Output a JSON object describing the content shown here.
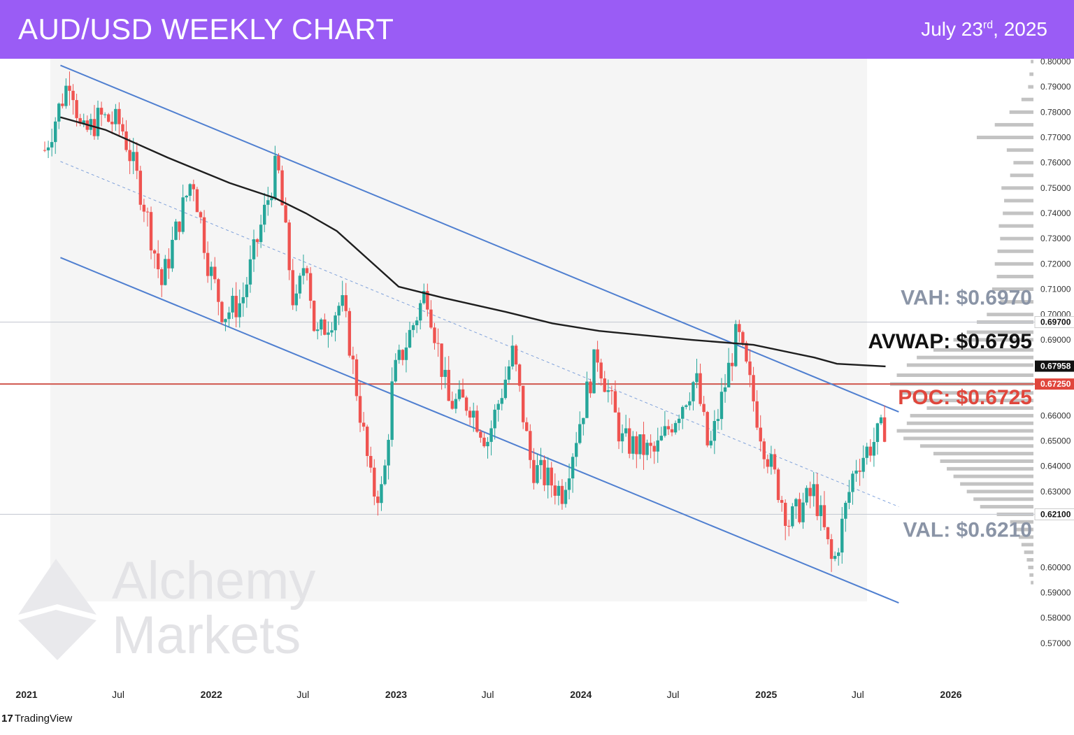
{
  "header": {
    "title": "AUD/USD WEEKLY CHART",
    "date_main": "July 23",
    "date_suffix": "rd",
    "date_year": ", 2025"
  },
  "watermark": {
    "line1": "Alchemy",
    "line2": "Markets"
  },
  "footer": {
    "brand": "TradingView",
    "logo_glyph": "17"
  },
  "chart_data": {
    "type": "candlestick",
    "title": "AUD/USD WEEKLY CHART",
    "timeframe": "weekly",
    "x_range": [
      "2021-01-01",
      "2026-03-01"
    ],
    "ylim": [
      0.565,
      0.8
    ],
    "y_ticks": [
      "0.80000",
      "0.79000",
      "0.78000",
      "0.77000",
      "0.76000",
      "0.75000",
      "0.74000",
      "0.73000",
      "0.72000",
      "0.71000",
      "0.70000",
      "0.69000",
      "0.66000",
      "0.65000",
      "0.64000",
      "0.63000",
      "0.60000",
      "0.59000",
      "0.58000",
      "0.57000"
    ],
    "x_ticks": [
      {
        "label": "2021",
        "date": "2021-01-01"
      },
      {
        "label": "Jul",
        "date": "2021-07-01"
      },
      {
        "label": "2022",
        "date": "2022-01-01"
      },
      {
        "label": "Jul",
        "date": "2022-07-01"
      },
      {
        "label": "2023",
        "date": "2023-01-01"
      },
      {
        "label": "Jul",
        "date": "2023-07-01"
      },
      {
        "label": "2024",
        "date": "2024-01-01"
      },
      {
        "label": "Jul",
        "date": "2024-07-01"
      },
      {
        "label": "2025",
        "date": "2025-01-01"
      },
      {
        "label": "Jul",
        "date": "2025-07-01"
      },
      {
        "label": "2026",
        "date": "2026-01-01"
      }
    ],
    "price_markers": [
      {
        "label": "0.69700",
        "value": 0.697,
        "style": "plain"
      },
      {
        "label": "0.67958",
        "value": 0.67958,
        "style": "dark"
      },
      {
        "label": "0.67250",
        "value": 0.6725,
        "style": "red"
      },
      {
        "label": "0.62100",
        "value": 0.621,
        "style": "plain"
      }
    ],
    "annotations": [
      {
        "text": "VAH: $0.6970",
        "value": 0.697,
        "color": "#8a94a6"
      },
      {
        "text": "AVWAP: $0.6795",
        "value": 0.6795,
        "color": "#111111"
      },
      {
        "text": "POC: $0.6725",
        "value": 0.6725,
        "color": "#e0463c"
      },
      {
        "text": "VAL: $0.6210",
        "value": 0.621,
        "color": "#8a94a6"
      }
    ],
    "horizontal_lines": [
      {
        "name": "VAH",
        "value": 0.697,
        "color": "#c8ccd4"
      },
      {
        "name": "POC",
        "value": 0.6725,
        "color": "#d0574e"
      },
      {
        "name": "VAL",
        "value": 0.621,
        "color": "#c8ccd4"
      }
    ],
    "channel": {
      "upper": [
        [
          "2021-02-01",
          0.7985
        ],
        [
          "2025-08-15",
          0.6615
        ]
      ],
      "lower": [
        [
          "2021-02-01",
          0.7225
        ],
        [
          "2025-08-15",
          0.586
        ]
      ],
      "mid": [
        [
          "2021-02-01",
          0.7605
        ],
        [
          "2025-08-15",
          0.624
        ]
      ]
    },
    "avwap": [
      [
        "2021-02-01",
        0.778
      ],
      [
        "2021-05-01",
        0.773
      ],
      [
        "2021-09-01",
        0.762
      ],
      [
        "2022-01-01",
        0.752
      ],
      [
        "2022-04-01",
        0.746
      ],
      [
        "2022-06-01",
        0.74
      ],
      [
        "2022-08-01",
        0.733
      ],
      [
        "2022-10-01",
        0.722
      ],
      [
        "2022-12-01",
        0.711
      ],
      [
        "2023-03-01",
        0.7065
      ],
      [
        "2023-07-01",
        0.701
      ],
      [
        "2023-10-01",
        0.6965
      ],
      [
        "2024-01-01",
        0.6935
      ],
      [
        "2024-07-01",
        0.69
      ],
      [
        "2024-11-01",
        0.688
      ],
      [
        "2025-03-01",
        0.683
      ],
      [
        "2025-04-15",
        0.6805
      ],
      [
        "2025-07-20",
        0.6795
      ]
    ],
    "price_path": [
      [
        "2021-01-01",
        0.765
      ],
      [
        "2021-02-21",
        0.795
      ],
      [
        "2021-03-15",
        0.77
      ],
      [
        "2021-04-20",
        0.778
      ],
      [
        "2021-06-01",
        0.775
      ],
      [
        "2021-07-15",
        0.745
      ],
      [
        "2021-08-20",
        0.712
      ],
      [
        "2021-09-20",
        0.735
      ],
      [
        "2021-10-20",
        0.755
      ],
      [
        "2021-11-20",
        0.72
      ],
      [
        "2021-12-20",
        0.7
      ],
      [
        "2022-01-25",
        0.705
      ],
      [
        "2022-04-05",
        0.76
      ],
      [
        "2022-05-10",
        0.7
      ],
      [
        "2022-06-01",
        0.725
      ],
      [
        "2022-06-20",
        0.69
      ],
      [
        "2022-08-10",
        0.705
      ],
      [
        "2022-08-25",
        0.69
      ],
      [
        "2022-10-10",
        0.63
      ],
      [
        "2022-10-31",
        0.63
      ],
      [
        "2022-11-20",
        0.675
      ],
      [
        "2023-01-25",
        0.71
      ],
      [
        "2023-03-10",
        0.665
      ],
      [
        "2023-04-20",
        0.665
      ],
      [
        "2023-05-25",
        0.65
      ],
      [
        "2023-07-15",
        0.685
      ],
      [
        "2023-08-20",
        0.64
      ],
      [
        "2023-10-20",
        0.63
      ],
      [
        "2023-12-28",
        0.685
      ],
      [
        "2024-02-15",
        0.65
      ],
      [
        "2024-04-20",
        0.645
      ],
      [
        "2024-07-10",
        0.675
      ],
      [
        "2024-08-05",
        0.645
      ],
      [
        "2024-09-30",
        0.693
      ],
      [
        "2024-11-20",
        0.65
      ],
      [
        "2025-01-10",
        0.618
      ],
      [
        "2025-03-01",
        0.63
      ],
      [
        "2025-04-07",
        0.6
      ],
      [
        "2025-05-20",
        0.64
      ],
      [
        "2025-07-20",
        0.656
      ]
    ],
    "volume_profile": {
      "poc": 0.6725,
      "vah": 0.697,
      "val": 0.621,
      "levels": [
        {
          "price": 0.8,
          "volume": 4
        },
        {
          "price": 0.795,
          "volume": 6
        },
        {
          "price": 0.79,
          "volume": 8
        },
        {
          "price": 0.785,
          "volume": 18
        },
        {
          "price": 0.78,
          "volume": 36
        },
        {
          "price": 0.775,
          "volume": 58
        },
        {
          "price": 0.77,
          "volume": 85
        },
        {
          "price": 0.765,
          "volume": 40
        },
        {
          "price": 0.76,
          "volume": 30
        },
        {
          "price": 0.755,
          "volume": 35
        },
        {
          "price": 0.75,
          "volume": 48
        },
        {
          "price": 0.745,
          "volume": 44
        },
        {
          "price": 0.74,
          "volume": 46
        },
        {
          "price": 0.735,
          "volume": 52
        },
        {
          "price": 0.73,
          "volume": 50
        },
        {
          "price": 0.725,
          "volume": 54
        },
        {
          "price": 0.72,
          "volume": 58
        },
        {
          "price": 0.715,
          "volume": 55
        },
        {
          "price": 0.71,
          "volume": 62
        },
        {
          "price": 0.705,
          "volume": 50
        },
        {
          "price": 0.7,
          "volume": 70
        },
        {
          "price": 0.697,
          "volume": 85
        },
        {
          "price": 0.693,
          "volume": 100
        },
        {
          "price": 0.69,
          "volume": 120
        },
        {
          "price": 0.686,
          "volume": 150
        },
        {
          "price": 0.683,
          "volume": 175
        },
        {
          "price": 0.68,
          "volume": 190
        },
        {
          "price": 0.676,
          "volume": 205
        },
        {
          "price": 0.6725,
          "volume": 215
        },
        {
          "price": 0.669,
          "volume": 200
        },
        {
          "price": 0.666,
          "volume": 180
        },
        {
          "price": 0.663,
          "volume": 160
        },
        {
          "price": 0.66,
          "volume": 185
        },
        {
          "price": 0.657,
          "volume": 190
        },
        {
          "price": 0.654,
          "volume": 205
        },
        {
          "price": 0.651,
          "volume": 195
        },
        {
          "price": 0.648,
          "volume": 170
        },
        {
          "price": 0.645,
          "volume": 150
        },
        {
          "price": 0.642,
          "volume": 140
        },
        {
          "price": 0.639,
          "volume": 130
        },
        {
          "price": 0.636,
          "volume": 120
        },
        {
          "price": 0.633,
          "volume": 110
        },
        {
          "price": 0.63,
          "volume": 100
        },
        {
          "price": 0.627,
          "volume": 90
        },
        {
          "price": 0.624,
          "volume": 80
        },
        {
          "price": 0.621,
          "volume": 55
        },
        {
          "price": 0.618,
          "volume": 35
        },
        {
          "price": 0.615,
          "volume": 28
        },
        {
          "price": 0.612,
          "volume": 22
        },
        {
          "price": 0.609,
          "volume": 18
        },
        {
          "price": 0.606,
          "volume": 14
        },
        {
          "price": 0.603,
          "volume": 10
        },
        {
          "price": 0.6,
          "volume": 8
        },
        {
          "price": 0.597,
          "volume": 6
        },
        {
          "price": 0.594,
          "volume": 4
        }
      ]
    },
    "colors": {
      "up": "#26a69a",
      "down": "#ef5350",
      "channel": "#4f7fd0",
      "avwap": "#1e1e1e",
      "poc_line": "#d0574e",
      "level_line": "#c8ccd4",
      "plot_bg": "#f5f5f5",
      "profile": "#b8b8b8"
    }
  }
}
